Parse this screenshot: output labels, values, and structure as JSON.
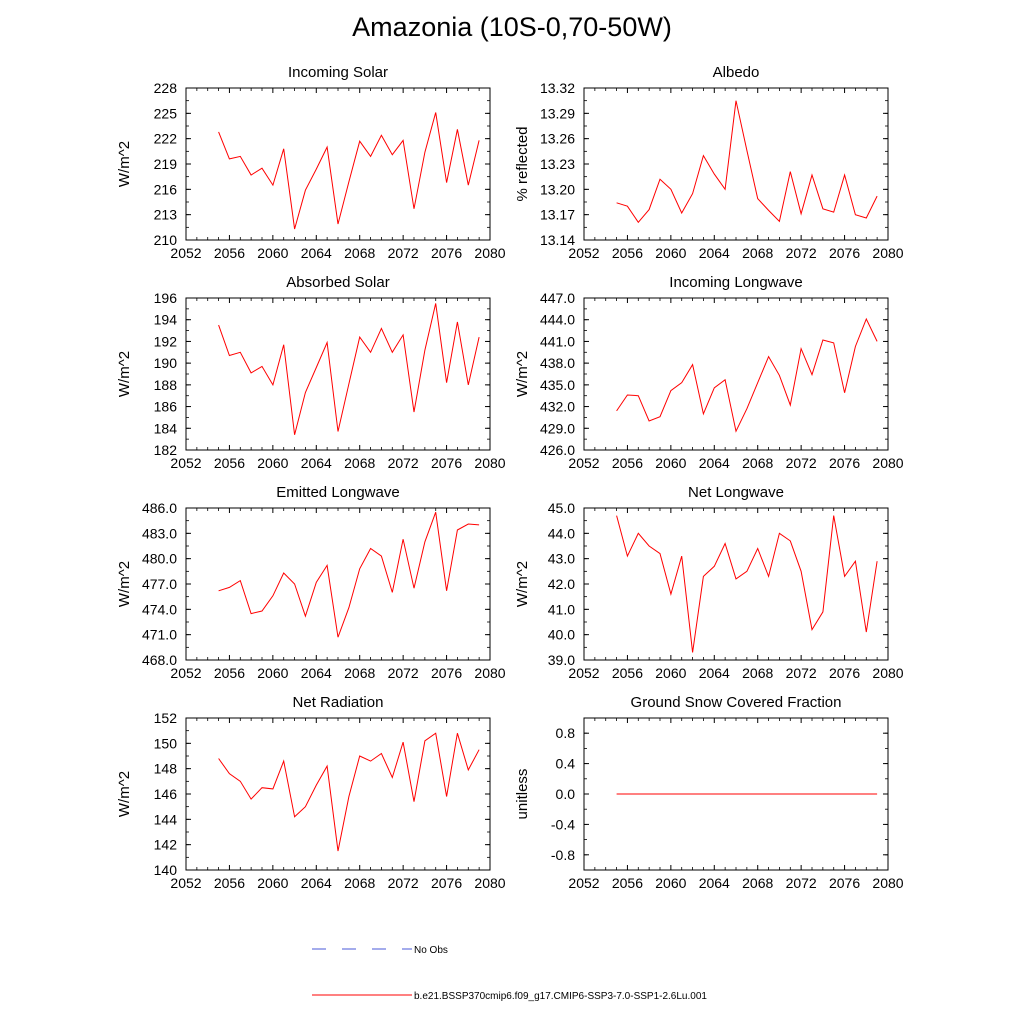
{
  "figure": {
    "title": "Amazonia (10S-0,70-50W)",
    "series_color": "#ff0000",
    "obs_color": "#4a5ad8"
  },
  "legend": {
    "entries": [
      {
        "label": "No Obs",
        "style": "dashed",
        "color": "#4a5ad8"
      },
      {
        "label": "b.e21.BSSP370cmip6.f09_g17.CMIP6-SSP3-7.0-SSP1-2.6Lu.001",
        "style": "solid",
        "color": "#ff0000"
      }
    ]
  },
  "chart_data": [
    {
      "type": "line",
      "title": "Incoming Solar",
      "ylabel": "W/m^2",
      "xlim": [
        2052,
        2080
      ],
      "ylim": [
        210,
        228
      ],
      "xticks": [
        "2052",
        "2056",
        "2060",
        "2064",
        "2068",
        "2072",
        "2076",
        "2080"
      ],
      "yticks": [
        "210",
        "213",
        "216",
        "219",
        "222",
        "225",
        "228"
      ],
      "x": [
        2055,
        2056,
        2057,
        2058,
        2059,
        2060,
        2061,
        2062,
        2063,
        2064,
        2065,
        2066,
        2067,
        2068,
        2069,
        2070,
        2071,
        2072,
        2073,
        2074,
        2075,
        2076,
        2077,
        2078,
        2079
      ],
      "values": [
        222.8,
        219.6,
        219.9,
        217.7,
        218.5,
        216.5,
        220.8,
        211.3,
        215.9,
        218.4,
        221.0,
        211.9,
        216.9,
        221.7,
        219.9,
        222.4,
        220.1,
        221.8,
        213.7,
        220.4,
        225.1,
        216.8,
        223.1,
        216.5,
        221.8
      ]
    },
    {
      "type": "line",
      "title": "Albedo",
      "ylabel": "% reflected",
      "xlim": [
        2052,
        2080
      ],
      "ylim": [
        13.14,
        13.32
      ],
      "xticks": [
        "2052",
        "2056",
        "2060",
        "2064",
        "2068",
        "2072",
        "2076",
        "2080"
      ],
      "yticks": [
        "13.14",
        "13.17",
        "13.20",
        "13.23",
        "13.26",
        "13.29",
        "13.32"
      ],
      "x": [
        2055,
        2056,
        2057,
        2058,
        2059,
        2060,
        2061,
        2062,
        2063,
        2064,
        2065,
        2066,
        2067,
        2068,
        2069,
        2070,
        2071,
        2072,
        2073,
        2074,
        2075,
        2076,
        2077,
        2078,
        2079
      ],
      "values": [
        13.184,
        13.18,
        13.161,
        13.176,
        13.212,
        13.2,
        13.172,
        13.195,
        13.24,
        13.218,
        13.2,
        13.305,
        13.246,
        13.189,
        13.175,
        13.162,
        13.221,
        13.171,
        13.217,
        13.177,
        13.173,
        13.217,
        13.17,
        13.166,
        13.192
      ]
    },
    {
      "type": "line",
      "title": "Absorbed Solar",
      "ylabel": "W/m^2",
      "xlim": [
        2052,
        2080
      ],
      "ylim": [
        182,
        196
      ],
      "xticks": [
        "2052",
        "2056",
        "2060",
        "2064",
        "2068",
        "2072",
        "2076",
        "2080"
      ],
      "yticks": [
        "182",
        "184",
        "186",
        "188",
        "190",
        "192",
        "194",
        "196"
      ],
      "x": [
        2055,
        2056,
        2057,
        2058,
        2059,
        2060,
        2061,
        2062,
        2063,
        2064,
        2065,
        2066,
        2067,
        2068,
        2069,
        2070,
        2071,
        2072,
        2073,
        2074,
        2075,
        2076,
        2077,
        2078,
        2079
      ],
      "values": [
        193.5,
        190.7,
        191.0,
        189.1,
        189.7,
        188.0,
        191.7,
        183.4,
        187.3,
        189.6,
        191.9,
        183.7,
        188.1,
        192.4,
        191.0,
        193.2,
        191.0,
        192.6,
        185.5,
        191.2,
        195.5,
        188.2,
        193.8,
        188.0,
        192.4
      ]
    },
    {
      "type": "line",
      "title": "Incoming Longwave",
      "ylabel": "W/m^2",
      "xlim": [
        2052,
        2080
      ],
      "ylim": [
        426.0,
        447.0
      ],
      "xticks": [
        "2052",
        "2056",
        "2060",
        "2064",
        "2068",
        "2072",
        "2076",
        "2080"
      ],
      "yticks": [
        "426.0",
        "429.0",
        "432.0",
        "435.0",
        "438.0",
        "441.0",
        "444.0",
        "447.0"
      ],
      "x": [
        2055,
        2056,
        2057,
        2058,
        2059,
        2060,
        2061,
        2062,
        2063,
        2064,
        2065,
        2066,
        2067,
        2068,
        2069,
        2070,
        2071,
        2072,
        2073,
        2074,
        2075,
        2076,
        2077,
        2078,
        2079
      ],
      "values": [
        431.4,
        433.6,
        433.5,
        430.0,
        430.6,
        434.2,
        435.3,
        437.8,
        431.0,
        434.6,
        435.7,
        428.6,
        431.7,
        435.3,
        438.9,
        436.3,
        432.2,
        440.0,
        436.4,
        441.2,
        440.8,
        433.9,
        440.3,
        444.1,
        441.0
      ]
    },
    {
      "type": "line",
      "title": "Emitted Longwave",
      "ylabel": "W/m^2",
      "xlim": [
        2052,
        2080
      ],
      "ylim": [
        468.0,
        486.0
      ],
      "xticks": [
        "2052",
        "2056",
        "2060",
        "2064",
        "2068",
        "2072",
        "2076",
        "2080"
      ],
      "yticks": [
        "468.0",
        "471.0",
        "474.0",
        "477.0",
        "480.0",
        "483.0",
        "486.0"
      ],
      "x": [
        2055,
        2056,
        2057,
        2058,
        2059,
        2060,
        2061,
        2062,
        2063,
        2064,
        2065,
        2066,
        2067,
        2068,
        2069,
        2070,
        2071,
        2072,
        2073,
        2074,
        2075,
        2076,
        2077,
        2078,
        2079
      ],
      "values": [
        476.2,
        476.6,
        477.4,
        473.5,
        473.8,
        475.6,
        478.3,
        477.0,
        473.2,
        477.2,
        479.2,
        470.7,
        474.2,
        478.8,
        481.2,
        480.3,
        476.0,
        482.3,
        476.5,
        482.0,
        485.5,
        476.2,
        483.4,
        484.1,
        484.0
      ]
    },
    {
      "type": "line",
      "title": "Net Longwave",
      "ylabel": "W/m^2",
      "xlim": [
        2052,
        2080
      ],
      "ylim": [
        39.0,
        45.0
      ],
      "xticks": [
        "2052",
        "2056",
        "2060",
        "2064",
        "2068",
        "2072",
        "2076",
        "2080"
      ],
      "yticks": [
        "39.0",
        "40.0",
        "41.0",
        "42.0",
        "43.0",
        "44.0",
        "45.0"
      ],
      "x": [
        2055,
        2056,
        2057,
        2058,
        2059,
        2060,
        2061,
        2062,
        2063,
        2064,
        2065,
        2066,
        2067,
        2068,
        2069,
        2070,
        2071,
        2072,
        2073,
        2074,
        2075,
        2076,
        2077,
        2078,
        2079
      ],
      "values": [
        44.7,
        43.1,
        44.0,
        43.5,
        43.2,
        41.6,
        43.1,
        39.3,
        42.3,
        42.7,
        43.6,
        42.2,
        42.5,
        43.4,
        42.3,
        44.0,
        43.7,
        42.5,
        40.2,
        40.9,
        44.7,
        42.3,
        42.9,
        40.1,
        42.9
      ]
    },
    {
      "type": "line",
      "title": "Net Radiation",
      "ylabel": "W/m^2",
      "xlim": [
        2052,
        2080
      ],
      "ylim": [
        140,
        152
      ],
      "xticks": [
        "2052",
        "2056",
        "2060",
        "2064",
        "2068",
        "2072",
        "2076",
        "2080"
      ],
      "yticks": [
        "140",
        "142",
        "144",
        "146",
        "148",
        "150",
        "152"
      ],
      "x": [
        2055,
        2056,
        2057,
        2058,
        2059,
        2060,
        2061,
        2062,
        2063,
        2064,
        2065,
        2066,
        2067,
        2068,
        2069,
        2070,
        2071,
        2072,
        2073,
        2074,
        2075,
        2076,
        2077,
        2078,
        2079
      ],
      "values": [
        148.8,
        147.6,
        147.0,
        145.6,
        146.5,
        146.4,
        148.6,
        144.2,
        145.0,
        146.7,
        148.2,
        141.5,
        145.8,
        149.0,
        148.6,
        149.2,
        147.3,
        150.1,
        145.4,
        150.2,
        150.8,
        145.8,
        150.8,
        147.9,
        149.5
      ]
    },
    {
      "type": "line",
      "title": "Ground Snow Covered Fraction",
      "ylabel": "unitless",
      "xlim": [
        2052,
        2080
      ],
      "ylim": [
        -1.0,
        1.0
      ],
      "xticks": [
        "2052",
        "2056",
        "2060",
        "2064",
        "2068",
        "2072",
        "2076",
        "2080"
      ],
      "yticks": [
        "-0.8",
        "-0.4",
        "0.0",
        "0.4",
        "0.8"
      ],
      "x": [
        2055,
        2056,
        2057,
        2058,
        2059,
        2060,
        2061,
        2062,
        2063,
        2064,
        2065,
        2066,
        2067,
        2068,
        2069,
        2070,
        2071,
        2072,
        2073,
        2074,
        2075,
        2076,
        2077,
        2078,
        2079
      ],
      "values": [
        0,
        0,
        0,
        0,
        0,
        0,
        0,
        0,
        0,
        0,
        0,
        0,
        0,
        0,
        0,
        0,
        0,
        0,
        0,
        0,
        0,
        0,
        0,
        0,
        0
      ]
    }
  ]
}
